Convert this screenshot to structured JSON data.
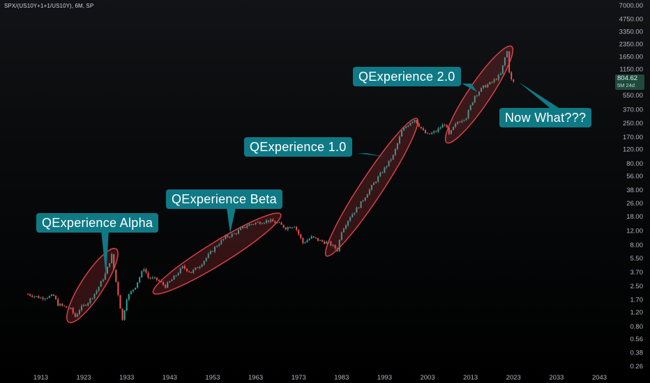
{
  "symbol_title": "SPX/(US10Y+1+1/US10Y), 6M, SP",
  "price_label": {
    "value": "804.62",
    "countdown": "5M 24d",
    "color": "#1f4a3c"
  },
  "colors": {
    "up": "#26a69a",
    "down": "#ef5350",
    "highlight": "#e0444a",
    "callout": "#0f7a85",
    "background": "#000000",
    "axis_text": "#b2b5be"
  },
  "chart_data": {
    "type": "candlestick",
    "title": "SPX/(US10Y+1+1/US10Y), 6M, SP",
    "interval": "6M",
    "y_scale": "log",
    "ylim": [
      0.24,
      7000
    ],
    "xlim": [
      1910,
      2046
    ],
    "y_ticks": [
      "7000.00",
      "4750.00",
      "3350.00",
      "2350.00",
      "1650.00",
      "1150.00",
      "804.62",
      "550.00",
      "370.00",
      "250.00",
      "170.00",
      "120.00",
      "80.00",
      "56.00",
      "38.00",
      "26.00",
      "18.00",
      "12.00",
      "8.00",
      "5.50",
      "3.70",
      "2.50",
      "1.70",
      "1.20",
      "0.80",
      "0.56",
      "0.38",
      "0.26"
    ],
    "x_ticks": [
      "1913",
      "1923",
      "1933",
      "1943",
      "1953",
      "1963",
      "1973",
      "1983",
      "1993",
      "2003",
      "2013",
      "2023",
      "2033",
      "2043"
    ],
    "series": [
      {
        "name": "SPX/(US10Y+1+1/US10Y)",
        "points": [
          {
            "x": 1910,
            "y": 2.0
          },
          {
            "x": 1913,
            "y": 1.8
          },
          {
            "x": 1916,
            "y": 1.9
          },
          {
            "x": 1917,
            "y": 1.5
          },
          {
            "x": 1920,
            "y": 1.3
          },
          {
            "x": 1921,
            "y": 1.05
          },
          {
            "x": 1922,
            "y": 1.3
          },
          {
            "x": 1924,
            "y": 1.6
          },
          {
            "x": 1926,
            "y": 2.2
          },
          {
            "x": 1928,
            "y": 3.5
          },
          {
            "x": 1929,
            "y": 5.0
          },
          {
            "x": 1929.5,
            "y": 6.0
          },
          {
            "x": 1930,
            "y": 4.0
          },
          {
            "x": 1931,
            "y": 2.0
          },
          {
            "x": 1932,
            "y": 0.95
          },
          {
            "x": 1933,
            "y": 1.8
          },
          {
            "x": 1935,
            "y": 2.5
          },
          {
            "x": 1937,
            "y": 4.2
          },
          {
            "x": 1938,
            "y": 3.2
          },
          {
            "x": 1940,
            "y": 3.0
          },
          {
            "x": 1942,
            "y": 2.5
          },
          {
            "x": 1944,
            "y": 3.2
          },
          {
            "x": 1946,
            "y": 4.3
          },
          {
            "x": 1948,
            "y": 3.7
          },
          {
            "x": 1950,
            "y": 4.5
          },
          {
            "x": 1952,
            "y": 6.0
          },
          {
            "x": 1954,
            "y": 8.0
          },
          {
            "x": 1956,
            "y": 10.0
          },
          {
            "x": 1958,
            "y": 11.0
          },
          {
            "x": 1961,
            "y": 14.0
          },
          {
            "x": 1963,
            "y": 15.0
          },
          {
            "x": 1966,
            "y": 16.0
          },
          {
            "x": 1968,
            "y": 15.0
          },
          {
            "x": 1970,
            "y": 13.0
          },
          {
            "x": 1972,
            "y": 14.0
          },
          {
            "x": 1974,
            "y": 8.5
          },
          {
            "x": 1976,
            "y": 10.0
          },
          {
            "x": 1978,
            "y": 9.0
          },
          {
            "x": 1980,
            "y": 8.5
          },
          {
            "x": 1982,
            "y": 7.0
          },
          {
            "x": 1983,
            "y": 12.0
          },
          {
            "x": 1985,
            "y": 18.0
          },
          {
            "x": 1987,
            "y": 24.0
          },
          {
            "x": 1989,
            "y": 35.0
          },
          {
            "x": 1991,
            "y": 50.0
          },
          {
            "x": 1993,
            "y": 70.0
          },
          {
            "x": 1995,
            "y": 100.0
          },
          {
            "x": 1997,
            "y": 200.0
          },
          {
            "x": 1999,
            "y": 260.0
          },
          {
            "x": 2000,
            "y": 280.0
          },
          {
            "x": 2002,
            "y": 200.0
          },
          {
            "x": 2003,
            "y": 180.0
          },
          {
            "x": 2005,
            "y": 200.0
          },
          {
            "x": 2007,
            "y": 250.0
          },
          {
            "x": 2008,
            "y": 180.0
          },
          {
            "x": 2009,
            "y": 220.0
          },
          {
            "x": 2010,
            "y": 260.0
          },
          {
            "x": 2012,
            "y": 300.0
          },
          {
            "x": 2014,
            "y": 550.0
          },
          {
            "x": 2016,
            "y": 700.0
          },
          {
            "x": 2018,
            "y": 800.0
          },
          {
            "x": 2020,
            "y": 1000.0
          },
          {
            "x": 2021,
            "y": 1600.0
          },
          {
            "x": 2021.5,
            "y": 1900.0
          },
          {
            "x": 2022,
            "y": 1100.0
          },
          {
            "x": 2022.5,
            "y": 850.0
          },
          {
            "x": 2023,
            "y": 804.62
          }
        ]
      }
    ],
    "annotations": [
      {
        "id": "alpha",
        "text": "QExperience Alpha",
        "x0": 1920,
        "y0": 1.0,
        "x1": 1930,
        "y1": 6.5
      },
      {
        "id": "beta",
        "text": "QExperience Beta",
        "x0": 1940,
        "y0": 2.2,
        "x1": 1968,
        "y1": 18.0
      },
      {
        "id": "v1",
        "text": "QExperience 1.0",
        "x0": 1980,
        "y0": 6.5,
        "x1": 2000,
        "y1": 260.0
      },
      {
        "id": "v2",
        "text": "QExperience 2.0",
        "x0": 2008,
        "y0": 160.0,
        "x1": 2022,
        "y1": 2000.0
      },
      {
        "id": "now",
        "text": "Now What???"
      }
    ]
  }
}
